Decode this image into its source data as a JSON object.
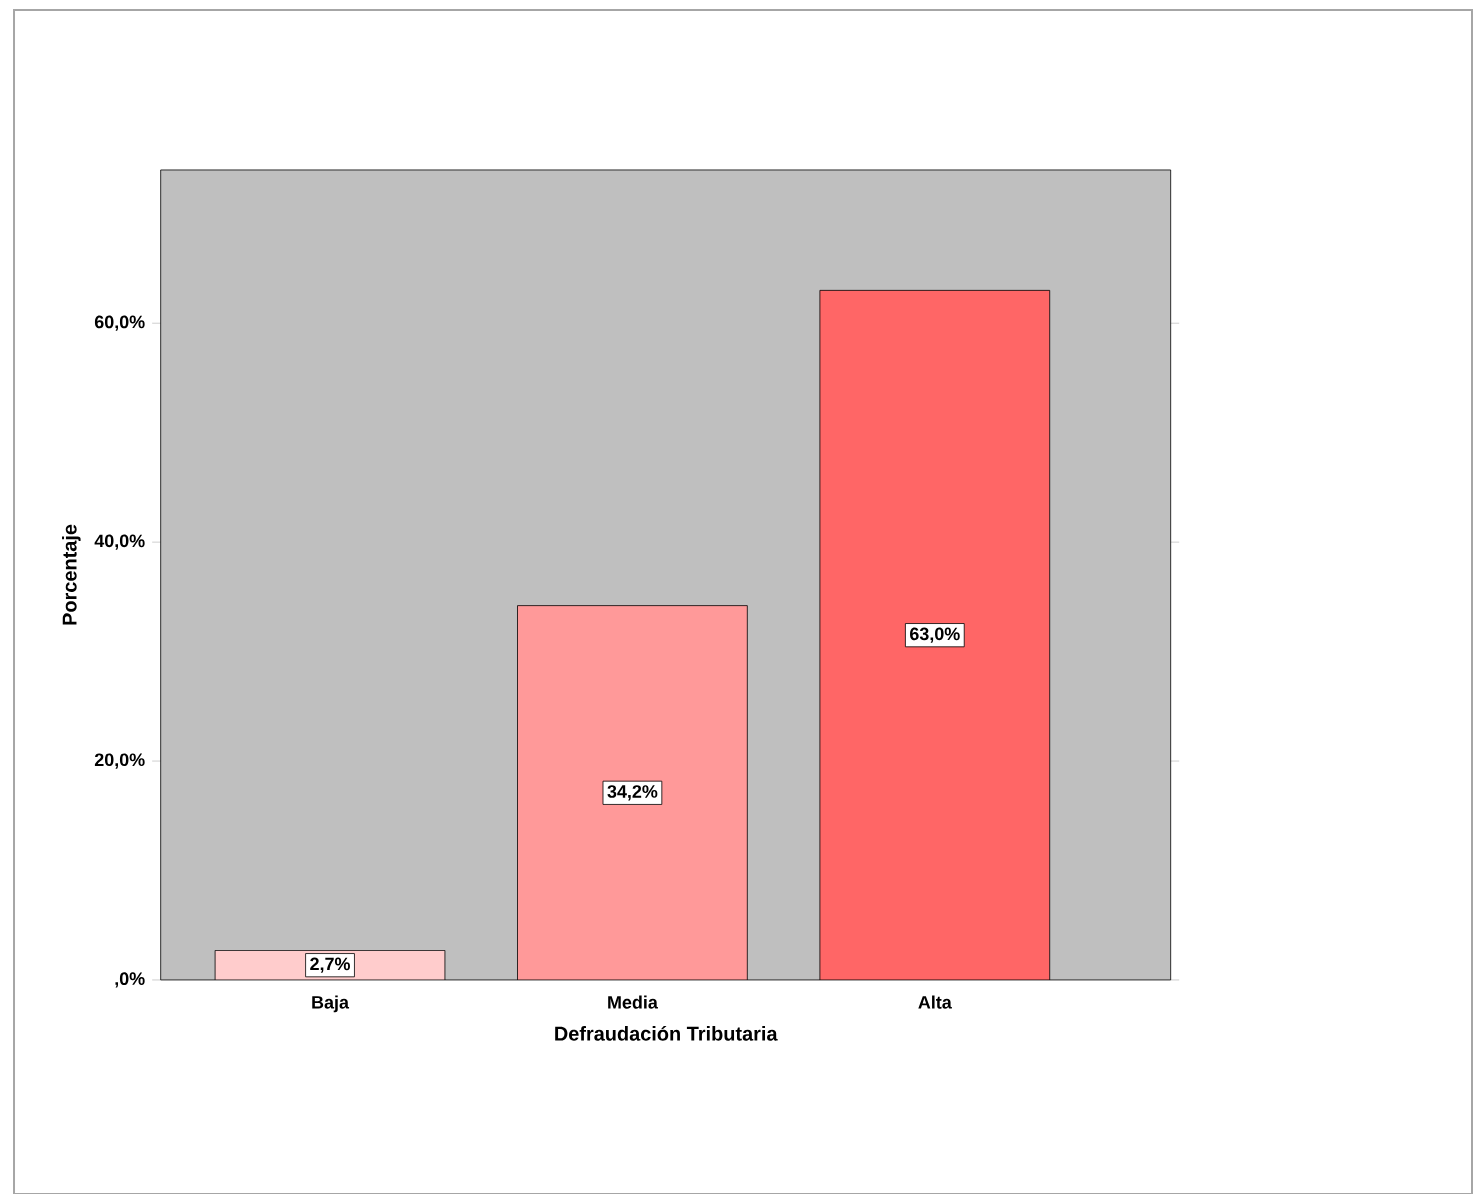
{
  "chart_data": {
    "type": "bar",
    "xlabel": "Defraudación Tributaria",
    "ylabel": "Porcentaje",
    "categories": [
      "Baja",
      "Media",
      "Alta"
    ],
    "values": [
      2.7,
      34.2,
      63.0
    ],
    "colors": [
      "#ffcccc",
      "#ff9999",
      "#ff6666"
    ],
    "value_labels": [
      "2,7%",
      "34,2%",
      "63,0%"
    ],
    "ylim": [
      0,
      74
    ],
    "yticks": [
      {
        "value": 0,
        "label": ",0%"
      },
      {
        "value": 20,
        "label": "20,0%"
      },
      {
        "value": 40,
        "label": "40,0%"
      },
      {
        "value": 60,
        "label": "60,0%"
      }
    ]
  }
}
